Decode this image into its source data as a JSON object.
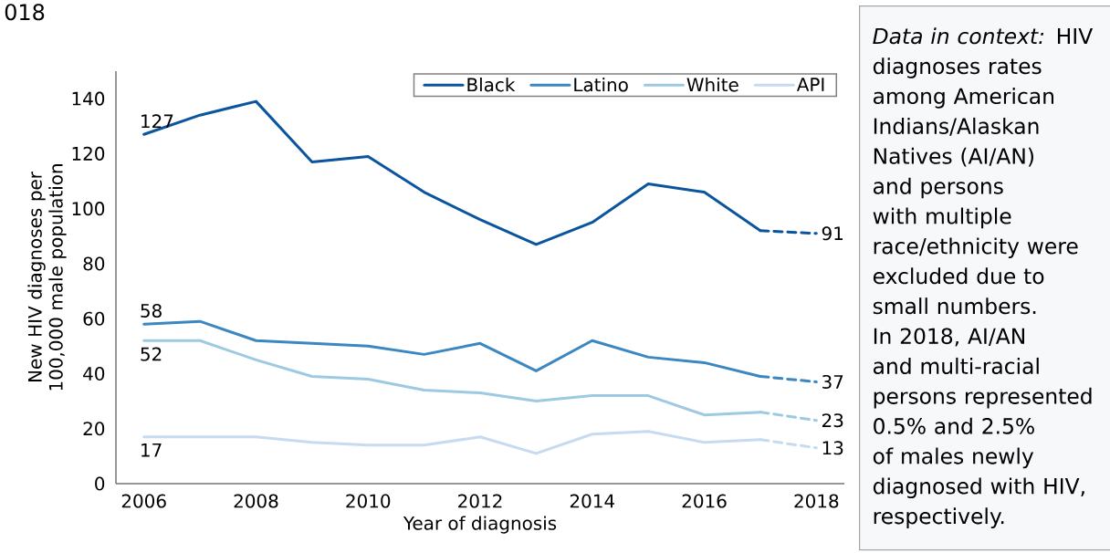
{
  "chart_data": {
    "type": "line",
    "title": "018",
    "xlabel": "Year of diagnosis",
    "ylabel": "New HIV diagnoses per 100,000 male population",
    "annotations": [
      "*Data in context:* HIV diagnoses rates among American Indians/Alaskan Natives (AI/AN) and persons with multiple race/ethnicity were excluded due to small numbers. In 2018, AI/AN and multi-racial persons represented 0.5% and 2.5% of males newly diagnosed with HIV, respectively."
    ],
    "xlim": [
      2005.5,
      2018.5
    ],
    "xticks": [
      2006,
      2008,
      2010,
      2012,
      2014,
      2016,
      2018
    ],
    "ylim": [
      0,
      150
    ],
    "yticks": [
      0,
      20,
      40,
      60,
      80,
      100,
      120,
      140
    ],
    "legend": "top right",
    "marker": "none",
    "line_style": "solid",
    "series": [
      {
        "name": "Black",
        "color": "#0b559f",
        "x": [
          2006,
          2007,
          2008,
          2009,
          2010,
          2011,
          2012,
          2013,
          2014,
          2015,
          2016,
          2017
        ],
        "values": [
          127,
          134,
          139,
          117,
          119,
          106,
          96,
          87,
          95,
          109,
          106,
          92
        ],
        "value_labels": [
          "127",
          null,
          null,
          null,
          null,
          null,
          null,
          null,
          null,
          null,
          null,
          null
        ]
      },
      {
        "name": "Latino",
        "color": "#3a87c2",
        "x": [
          2006,
          2007,
          2008,
          2009,
          2010,
          2011,
          2012,
          2013,
          2014,
          2015,
          2016,
          2017
        ],
        "values": [
          58,
          59,
          52,
          51,
          50,
          47,
          51,
          41,
          52,
          46,
          44,
          39
        ],
        "value_labels": [
          "58",
          null,
          null,
          null,
          null,
          null,
          null,
          null,
          null,
          null,
          null,
          null
        ]
      },
      {
        "name": "White",
        "color": "#9ecae1",
        "x": [
          2006,
          2007,
          2008,
          2009,
          2010,
          2011,
          2012,
          2013,
          2014,
          2015,
          2016,
          2017
        ],
        "values": [
          52,
          52,
          45,
          39,
          38,
          34,
          33,
          30,
          32,
          32,
          25,
          26
        ],
        "value_labels": [
          "52",
          null,
          null,
          null,
          null,
          null,
          null,
          null,
          null,
          null,
          null,
          null
        ]
      },
      {
        "name": "API",
        "color": "#c6dbef",
        "x": [
          2006,
          2007,
          2008,
          2009,
          2010,
          2011,
          2012,
          2013,
          2014,
          2015,
          2016,
          2017
        ],
        "values": [
          17,
          17,
          17,
          15,
          14,
          14,
          17,
          11,
          18,
          19,
          15,
          16
        ],
        "value_labels": [
          "17",
          null,
          null,
          null,
          null,
          null,
          null,
          null,
          null,
          null,
          null,
          null
        ]
      },
      {
        "color": "#0b559f",
        "line_style": "dashed",
        "x": [
          2017,
          2018
        ],
        "values": [
          92,
          91
        ],
        "value_labels": [
          null,
          "91"
        ]
      },
      {
        "color": "#3a87c2",
        "line_style": "dashed",
        "x": [
          2017,
          2018
        ],
        "values": [
          39,
          37
        ],
        "value_labels": [
          null,
          "37"
        ]
      },
      {
        "color": "#9ecae1",
        "line_style": "dashed",
        "x": [
          2017,
          2018
        ],
        "values": [
          26,
          23
        ],
        "value_labels": [
          null,
          "23"
        ]
      },
      {
        "color": "#c6dbef",
        "line_style": "dashed",
        "x": [
          2017,
          2018
        ],
        "values": [
          16,
          13
        ],
        "value_labels": [
          null,
          "13"
        ]
      }
    ]
  }
}
